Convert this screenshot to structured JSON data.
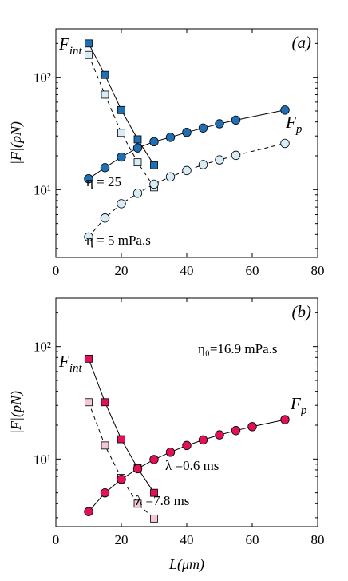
{
  "chart_data": [
    {
      "type": "scatter",
      "panel_label": "(a)",
      "xlabel": "",
      "ylabel": "|F|(pN)",
      "xlim": [
        0,
        80
      ],
      "ylim": [
        2.5,
        270
      ],
      "yscale": "log",
      "xticks": [
        "0",
        "20",
        "40",
        "60",
        "80"
      ],
      "yticks": [
        "10¹",
        "10²"
      ],
      "grid": false,
      "annotations": {
        "f_int": "F_int",
        "f_p": "F_p",
        "eta_high": "η = 25",
        "eta_low": "η = 5 mPa.s"
      },
      "series": [
        {
          "key": "fint_eta25",
          "marker": "square",
          "line": "solid",
          "fill": "#1f6fb5",
          "x": [
            10,
            15,
            20,
            25,
            30
          ],
          "y": [
            200,
            105,
            51,
            28,
            16.5
          ]
        },
        {
          "key": "fint_eta5",
          "marker": "square",
          "line": "dashed",
          "fill": "#d6ecf7",
          "x": [
            10,
            15,
            20,
            25,
            30
          ],
          "y": [
            158,
            70,
            32,
            17.5,
            10.5
          ]
        },
        {
          "key": "fp_eta25",
          "marker": "circle",
          "line": "solid",
          "fill": "#1f6fb5",
          "x": [
            10,
            15,
            20,
            25,
            30,
            35,
            40,
            45,
            50,
            55,
            70
          ],
          "y": [
            12.5,
            15.7,
            19.5,
            23.5,
            26.7,
            29.2,
            32.3,
            35.3,
            38.5,
            41.5,
            51
          ]
        },
        {
          "key": "fp_eta5",
          "marker": "circle",
          "line": "dashed",
          "fill": "#d6ecf7",
          "x": [
            10,
            15,
            20,
            25,
            30,
            35,
            40,
            45,
            50,
            55,
            70
          ],
          "y": [
            3.8,
            5.6,
            7.5,
            9.3,
            11.2,
            13.0,
            14.8,
            16.7,
            18.4,
            20.2,
            25.8
          ]
        }
      ]
    },
    {
      "type": "scatter",
      "panel_label": "(b)",
      "xlabel": "L(μm)",
      "ylabel": "|F|(pN)",
      "xlim": [
        0,
        80
      ],
      "ylim": [
        2.5,
        270
      ],
      "yscale": "log",
      "xticks": [
        "0",
        "20",
        "40",
        "60",
        "80"
      ],
      "yticks": [
        "10¹",
        "10²"
      ],
      "grid": false,
      "annotations": {
        "f_int": "F_int",
        "f_p": "F_p",
        "eta0": "η₀=16.9 mPa.s",
        "lambda_short": "λ =0.6  ms",
        "lambda_long": "λ =7.8  ms"
      },
      "series": [
        {
          "key": "fint_lambda06",
          "marker": "square",
          "line": "solid",
          "fill": "#e0105a",
          "x": [
            10,
            15,
            20,
            25,
            30
          ],
          "y": [
            78,
            32,
            15,
            8.3,
            5.0
          ]
        },
        {
          "key": "fint_lambda78",
          "marker": "square",
          "line": "dashed",
          "fill": "#f5c6d4",
          "x": [
            10,
            15,
            20,
            25,
            30
          ],
          "y": [
            32,
            13.2,
            6.8,
            4.0,
            2.95
          ]
        },
        {
          "key": "fp",
          "marker": "circle",
          "line": "solid",
          "fill": "#e0105a",
          "x": [
            10,
            15,
            20,
            25,
            30,
            35,
            40,
            45,
            50,
            55,
            60,
            70
          ],
          "y": [
            3.4,
            5.0,
            6.6,
            8.2,
            9.9,
            11.5,
            13.2,
            14.8,
            16.4,
            17.9,
            19.4,
            22.4
          ]
        }
      ]
    }
  ]
}
